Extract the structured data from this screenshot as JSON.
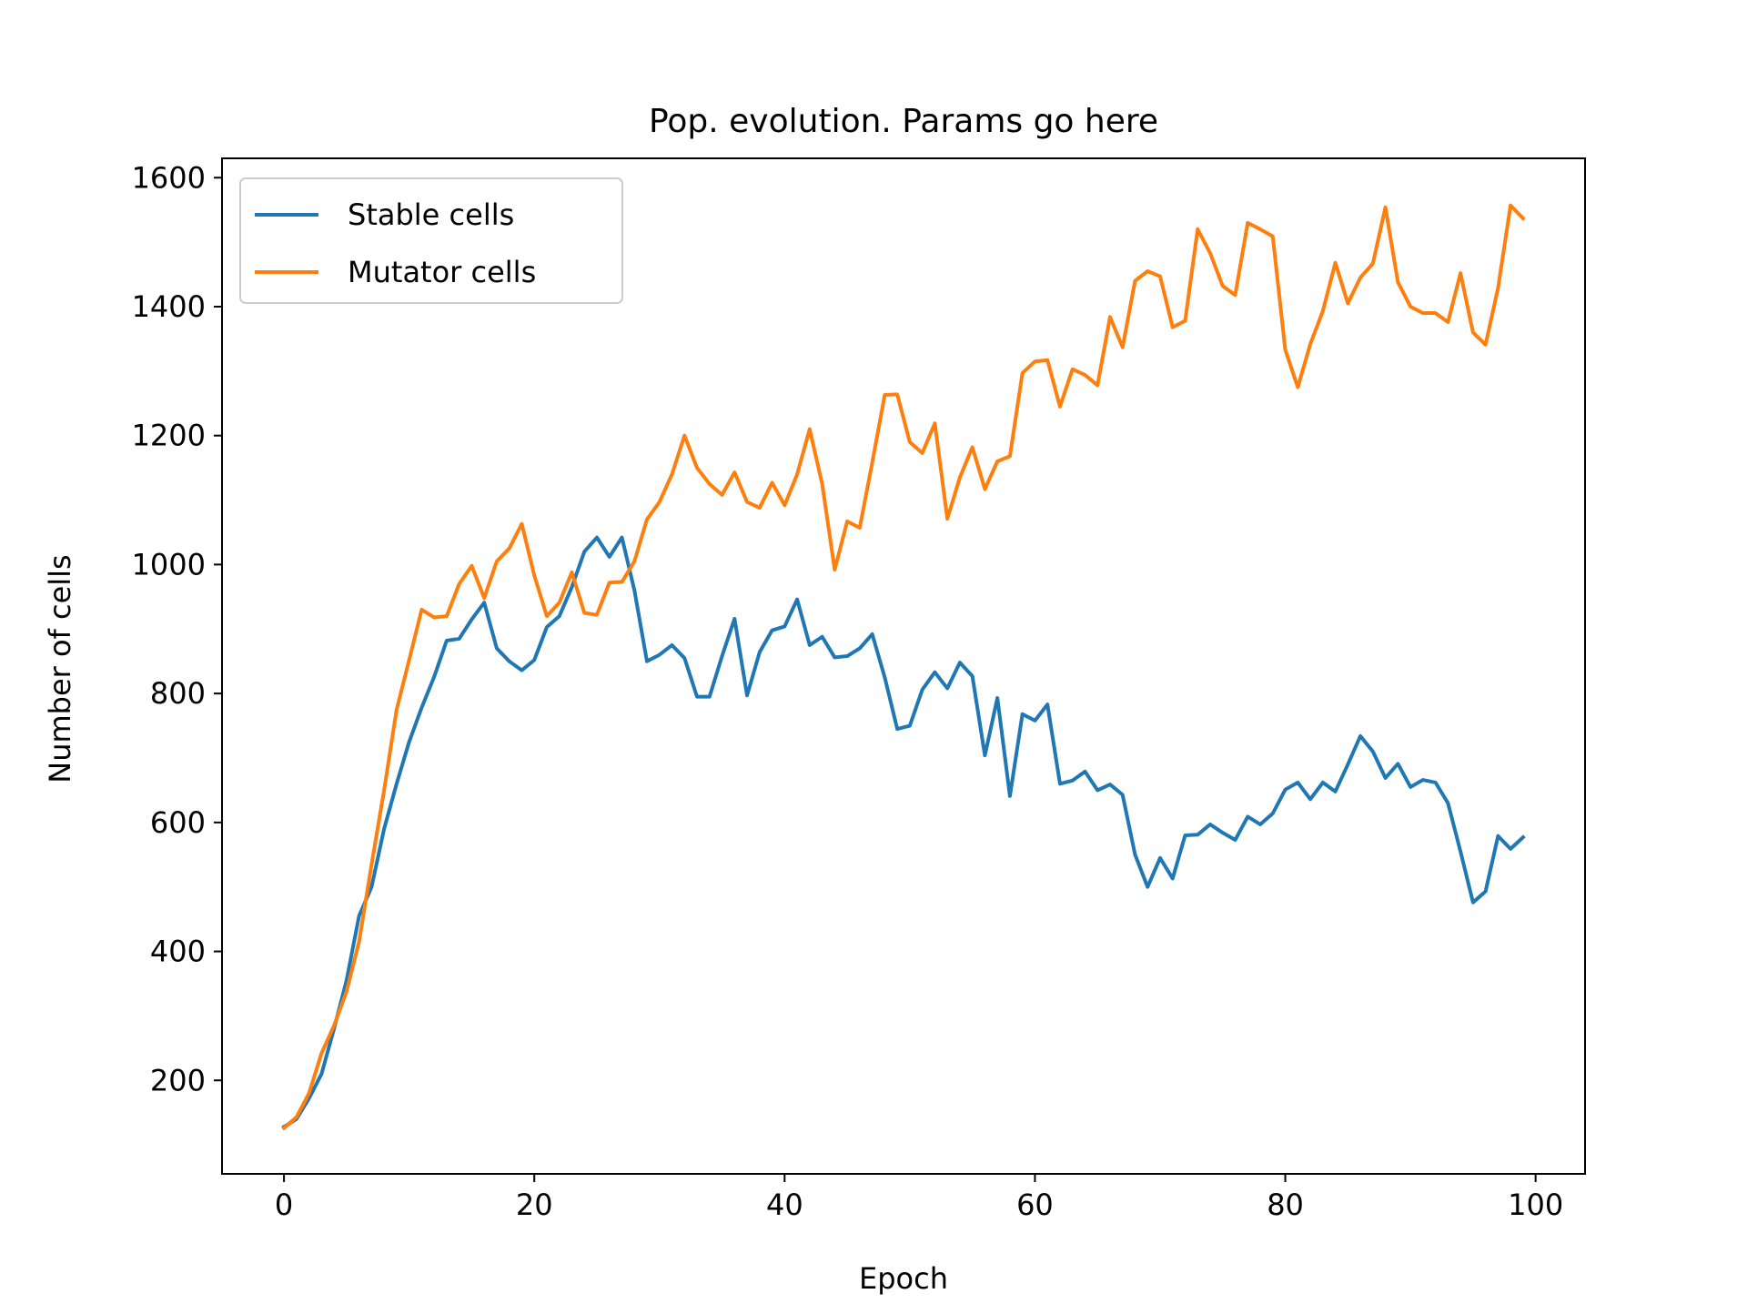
{
  "chart_data": {
    "type": "line",
    "title": "Pop. evolution. Params go here",
    "xlabel": "Epoch",
    "ylabel": "Number of cells",
    "xlim": [
      -4.95,
      103.95
    ],
    "ylim": [
      55,
      1630
    ],
    "xticks": [
      0,
      20,
      40,
      60,
      80,
      100
    ],
    "yticks": [
      200,
      400,
      600,
      800,
      1000,
      1200,
      1400,
      1600
    ],
    "grid": false,
    "legend_position": "top-left",
    "series": [
      {
        "name": "Stable cells",
        "color": "#1f77b4",
        "x": [
          0,
          1,
          2,
          3,
          4,
          5,
          6,
          7,
          8,
          9,
          10,
          11,
          12,
          13,
          14,
          15,
          16,
          17,
          18,
          19,
          20,
          21,
          22,
          23,
          24,
          25,
          26,
          27,
          28,
          29,
          30,
          31,
          32,
          33,
          34,
          35,
          36,
          37,
          38,
          39,
          40,
          41,
          42,
          43,
          44,
          45,
          46,
          47,
          48,
          49,
          50,
          51,
          52,
          53,
          54,
          55,
          56,
          57,
          58,
          59,
          60,
          61,
          62,
          63,
          64,
          65,
          66,
          67,
          68,
          69,
          70,
          71,
          72,
          73,
          74,
          75,
          76,
          77,
          78,
          79,
          80,
          81,
          82,
          83,
          84,
          85,
          86,
          87,
          88,
          89,
          90,
          91,
          92,
          93,
          94,
          95,
          96,
          97,
          98,
          99
        ],
        "values": [
          128,
          140,
          172,
          210,
          280,
          355,
          455,
          500,
          590,
          660,
          725,
          778,
          826,
          882,
          885,
          915,
          941,
          870,
          850,
          836,
          852,
          903,
          920,
          965,
          1020,
          1042,
          1012,
          1042,
          960,
          850,
          860,
          875,
          855,
          795,
          795,
          858,
          916,
          797,
          864,
          898,
          904,
          946,
          875,
          888,
          856,
          858,
          870,
          892,
          825,
          745,
          750,
          806,
          833,
          808,
          848,
          827,
          704,
          793,
          641,
          768,
          758,
          783,
          660,
          665,
          679,
          650,
          659,
          643,
          550,
          500,
          545,
          513,
          580,
          581,
          597,
          584,
          573,
          609,
          597,
          614,
          651,
          662,
          636,
          662,
          648,
          690,
          734,
          710,
          669,
          691,
          655,
          666,
          662,
          630,
          555,
          476,
          493,
          579,
          559,
          577
        ]
      },
      {
        "name": "Mutator cells",
        "color": "#ff7f0e",
        "x": [
          0,
          1,
          2,
          3,
          4,
          5,
          6,
          7,
          8,
          9,
          10,
          11,
          12,
          13,
          14,
          15,
          16,
          17,
          18,
          19,
          20,
          21,
          22,
          23,
          24,
          25,
          26,
          27,
          28,
          29,
          30,
          31,
          32,
          33,
          34,
          35,
          36,
          37,
          38,
          39,
          40,
          41,
          42,
          43,
          44,
          45,
          46,
          47,
          48,
          49,
          50,
          51,
          52,
          53,
          54,
          55,
          56,
          57,
          58,
          59,
          60,
          61,
          62,
          63,
          64,
          65,
          66,
          67,
          68,
          69,
          70,
          71,
          72,
          73,
          74,
          75,
          76,
          77,
          78,
          79,
          80,
          81,
          82,
          83,
          84,
          85,
          86,
          87,
          88,
          89,
          90,
          91,
          92,
          93,
          94,
          95,
          96,
          97,
          98,
          99
        ],
        "values": [
          126,
          143,
          180,
          242,
          285,
          338,
          415,
          535,
          650,
          775,
          852,
          930,
          918,
          920,
          970,
          998,
          948,
          1005,
          1025,
          1063,
          983,
          920,
          941,
          988,
          925,
          922,
          972,
          973,
          1005,
          1070,
          1097,
          1140,
          1200,
          1150,
          1125,
          1108,
          1143,
          1097,
          1088,
          1127,
          1092,
          1140,
          1210,
          1125,
          992,
          1067,
          1057,
          1158,
          1263,
          1264,
          1190,
          1173,
          1219,
          1071,
          1135,
          1182,
          1117,
          1160,
          1168,
          1297,
          1315,
          1317,
          1245,
          1303,
          1294,
          1278,
          1384,
          1337,
          1440,
          1455,
          1447,
          1368,
          1378,
          1520,
          1483,
          1432,
          1418,
          1530,
          1520,
          1509,
          1333,
          1275,
          1342,
          1393,
          1468,
          1405,
          1445,
          1467,
          1554,
          1438,
          1400,
          1390,
          1390,
          1376,
          1452,
          1360,
          1341,
          1429,
          1557,
          1537
        ]
      }
    ]
  }
}
